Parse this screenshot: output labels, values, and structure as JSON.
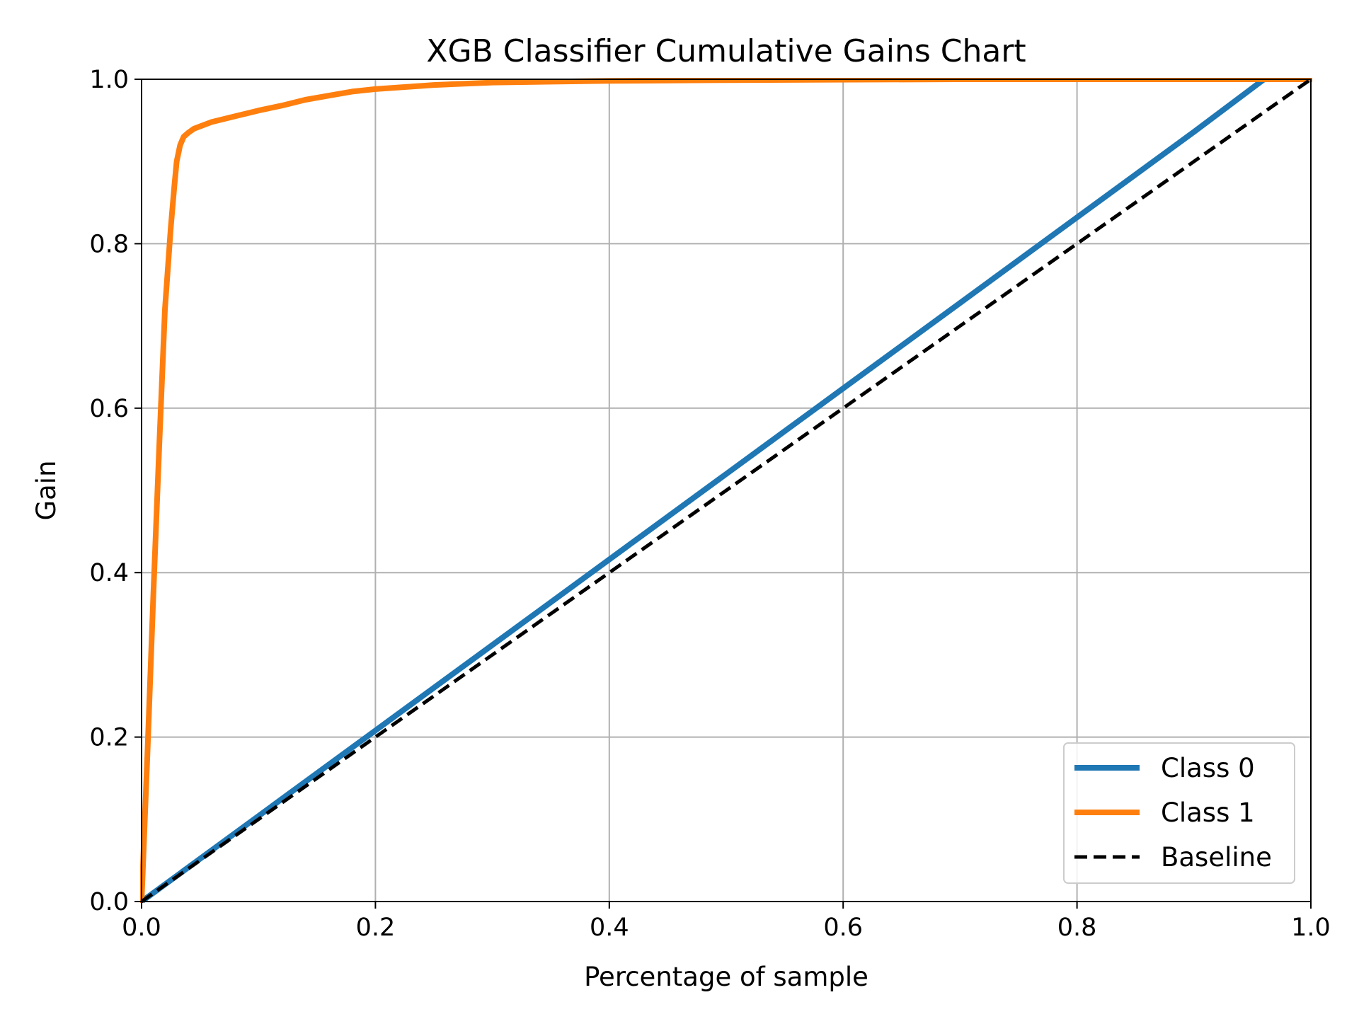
{
  "chart_data": {
    "type": "line",
    "title": "XGB Classifier Cumulative Gains Chart",
    "xlabel": "Percentage of sample",
    "ylabel": "Gain",
    "xlim": [
      0.0,
      1.0
    ],
    "ylim": [
      0.0,
      1.0
    ],
    "xticks": [
      "0.0",
      "0.2",
      "0.4",
      "0.6",
      "0.8",
      "1.0"
    ],
    "yticks": [
      "0.0",
      "0.2",
      "0.4",
      "0.6",
      "0.8",
      "1.0"
    ],
    "grid": true,
    "legend_position": "lower-right",
    "series": [
      {
        "name": "Class 0",
        "color": "#1f77b4",
        "style": "solid",
        "x": [
          0.0,
          0.1,
          0.2,
          0.3,
          0.4,
          0.5,
          0.6,
          0.7,
          0.8,
          0.9,
          0.96,
          1.0
        ],
        "y": [
          0.0,
          0.104,
          0.208,
          0.312,
          0.416,
          0.52,
          0.624,
          0.728,
          0.832,
          0.936,
          1.0,
          1.0
        ]
      },
      {
        "name": "Class 1",
        "color": "#ff7f0e",
        "style": "solid",
        "x": [
          0.0,
          0.005,
          0.01,
          0.015,
          0.02,
          0.025,
          0.028,
          0.03,
          0.033,
          0.036,
          0.04,
          0.045,
          0.06,
          0.08,
          0.1,
          0.12,
          0.14,
          0.16,
          0.18,
          0.2,
          0.25,
          0.3,
          0.4,
          0.5,
          0.7,
          1.0
        ],
        "y": [
          0.0,
          0.18,
          0.37,
          0.55,
          0.72,
          0.82,
          0.87,
          0.9,
          0.92,
          0.93,
          0.935,
          0.94,
          0.948,
          0.955,
          0.962,
          0.968,
          0.975,
          0.98,
          0.985,
          0.988,
          0.993,
          0.996,
          0.998,
          0.999,
          1.0,
          1.0
        ]
      },
      {
        "name": "Baseline",
        "color": "#000000",
        "style": "dashed",
        "x": [
          0.0,
          1.0
        ],
        "y": [
          0.0,
          1.0
        ]
      }
    ]
  }
}
